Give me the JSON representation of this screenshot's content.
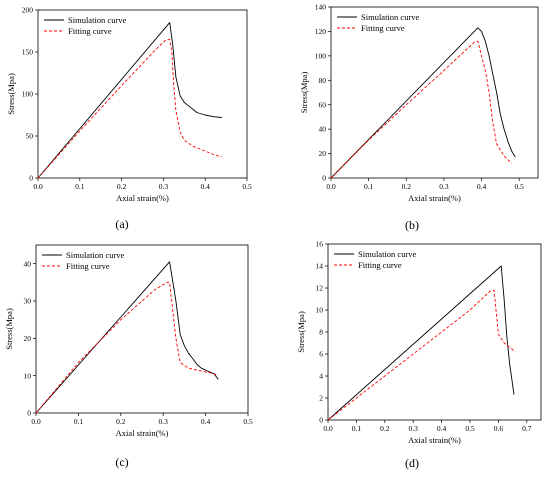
{
  "colors": {
    "simulation": "#000000",
    "fitting": "#ff0000"
  },
  "chart_data": [
    {
      "type": "line",
      "panel_label": "(a)",
      "xlabel": "Axial strain(%)",
      "ylabel": "Stress(Mpa)",
      "xlim": [
        0,
        0.5
      ],
      "ylim": [
        0,
        200
      ],
      "xticks": [
        0.0,
        0.1,
        0.2,
        0.3,
        0.4,
        0.5
      ],
      "yticks": [
        0,
        50,
        100,
        150,
        200
      ],
      "xtick_labels": [
        "0.0",
        "0.1",
        "0.2",
        "0.3",
        "0.4",
        "0.5"
      ],
      "ytick_labels": [
        "0",
        "50",
        "100",
        "150",
        "200"
      ],
      "legend": {
        "position": "top-left",
        "entries": [
          "Simulation curve",
          "Fitting curve"
        ]
      },
      "series": [
        {
          "name": "Simulation curve",
          "style": "solid",
          "x": [
            0,
            0.315,
            0.322,
            0.33,
            0.34,
            0.35,
            0.36,
            0.37,
            0.38,
            0.4,
            0.42,
            0.44
          ],
          "y": [
            0,
            185,
            160,
            120,
            98,
            90,
            86,
            82,
            78,
            75,
            73,
            72
          ]
        },
        {
          "name": "Fitting curve",
          "style": "dashed",
          "x": [
            0,
            0.1,
            0.2,
            0.28,
            0.305,
            0.315,
            0.32,
            0.325,
            0.33,
            0.34,
            0.35,
            0.37,
            0.4,
            0.42,
            0.44
          ],
          "y": [
            0,
            56,
            110,
            152,
            164,
            165,
            150,
            110,
            80,
            55,
            45,
            38,
            32,
            28,
            25
          ]
        }
      ]
    },
    {
      "type": "line",
      "panel_label": "(b)",
      "xlabel": "Axial strain(%)",
      "ylabel": "Stress(Mpa)",
      "xlim": [
        0,
        0.55
      ],
      "ylim": [
        0,
        140
      ],
      "xticks": [
        0.0,
        0.1,
        0.2,
        0.3,
        0.4,
        0.5
      ],
      "yticks": [
        0,
        20,
        40,
        60,
        80,
        100,
        120,
        140
      ],
      "xtick_labels": [
        "0.0",
        "0.1",
        "0.2",
        "0.3",
        "0.4",
        "0.5"
      ],
      "ytick_labels": [
        "0",
        "20",
        "40",
        "60",
        "80",
        "100",
        "120",
        "140"
      ],
      "legend": {
        "position": "top-left",
        "entries": [
          "Simulation curve",
          "Fitting curve"
        ]
      },
      "series": [
        {
          "name": "Simulation curve",
          "style": "solid",
          "x": [
            0,
            0.39,
            0.4,
            0.41,
            0.42,
            0.43,
            0.44,
            0.45,
            0.46,
            0.47,
            0.48,
            0.49
          ],
          "y": [
            0,
            123,
            120,
            112,
            100,
            85,
            70,
            52,
            40,
            30,
            22,
            17
          ]
        },
        {
          "name": "Fitting curve",
          "style": "dashed",
          "x": [
            0,
            0.1,
            0.2,
            0.3,
            0.38,
            0.39,
            0.4,
            0.41,
            0.42,
            0.43,
            0.44,
            0.45,
            0.46,
            0.47,
            0.48
          ],
          "y": [
            0,
            31,
            60,
            88,
            111,
            112,
            100,
            88,
            70,
            45,
            28,
            23,
            18,
            15,
            12
          ]
        }
      ]
    },
    {
      "type": "line",
      "panel_label": "(c)",
      "xlabel": "Axial strain(%)",
      "ylabel": "Stress(Mpa)",
      "xlim": [
        0,
        0.5
      ],
      "ylim": [
        0,
        45
      ],
      "xticks": [
        0.0,
        0.1,
        0.2,
        0.3,
        0.4,
        0.5
      ],
      "yticks": [
        0,
        10,
        20,
        30,
        40
      ],
      "xtick_labels": [
        "0.0",
        "0.1",
        "0.2",
        "0.3",
        "0.4",
        "0.5"
      ],
      "ytick_labels": [
        "0",
        "10",
        "20",
        "30",
        "40"
      ],
      "legend": {
        "position": "top-left",
        "entries": [
          "Simulation curve",
          "Fitting curve"
        ]
      },
      "series": [
        {
          "name": "Simulation curve",
          "style": "solid",
          "x": [
            0,
            0.315,
            0.32,
            0.33,
            0.34,
            0.35,
            0.36,
            0.37,
            0.38,
            0.39,
            0.4,
            0.42,
            0.43
          ],
          "y": [
            0,
            40.5,
            37,
            30,
            21,
            18,
            16,
            14.5,
            13,
            12,
            11.5,
            10.5,
            9
          ]
        },
        {
          "name": "Fitting curve",
          "style": "dashed",
          "x": [
            0,
            0.1,
            0.2,
            0.28,
            0.31,
            0.315,
            0.32,
            0.33,
            0.34,
            0.36,
            0.38,
            0.4,
            0.42,
            0.43
          ],
          "y": [
            0,
            13.5,
            25,
            33,
            35,
            35,
            30,
            20,
            13.5,
            12,
            11.5,
            11,
            10.5,
            10
          ]
        }
      ]
    },
    {
      "type": "line",
      "panel_label": "(d)",
      "xlabel": "Axial strain(%)",
      "ylabel": "Stress(Mpa)",
      "xlim": [
        0,
        0.75
      ],
      "ylim": [
        0,
        16
      ],
      "xticks": [
        0.0,
        0.1,
        0.2,
        0.3,
        0.4,
        0.5,
        0.6,
        0.7
      ],
      "yticks": [
        0,
        2,
        4,
        6,
        8,
        10,
        12,
        14,
        16
      ],
      "xtick_labels": [
        "0.0",
        "0.1",
        "0.2",
        "0.3",
        "0.4",
        "0.5",
        "0.6",
        "0.7"
      ],
      "ytick_labels": [
        "0",
        "2",
        "4",
        "6",
        "8",
        "10",
        "12",
        "14",
        "16"
      ],
      "legend": {
        "position": "top-left",
        "entries": [
          "Simulation curve",
          "Fitting curve"
        ]
      },
      "series": [
        {
          "name": "Simulation curve",
          "style": "solid",
          "x": [
            0,
            0.61,
            0.62,
            0.63,
            0.64,
            0.65,
            0.655
          ],
          "y": [
            0,
            14,
            11,
            7.5,
            5,
            3.2,
            2.3
          ]
        },
        {
          "name": "Fitting curve",
          "style": "dashed",
          "x": [
            0,
            0.1,
            0.2,
            0.3,
            0.4,
            0.5,
            0.57,
            0.585,
            0.6,
            0.62,
            0.64,
            0.66
          ],
          "y": [
            0,
            2.0,
            4.0,
            6.0,
            8.0,
            10.0,
            11.7,
            11.8,
            7.8,
            7.0,
            6.6,
            6.2
          ]
        }
      ]
    }
  ]
}
